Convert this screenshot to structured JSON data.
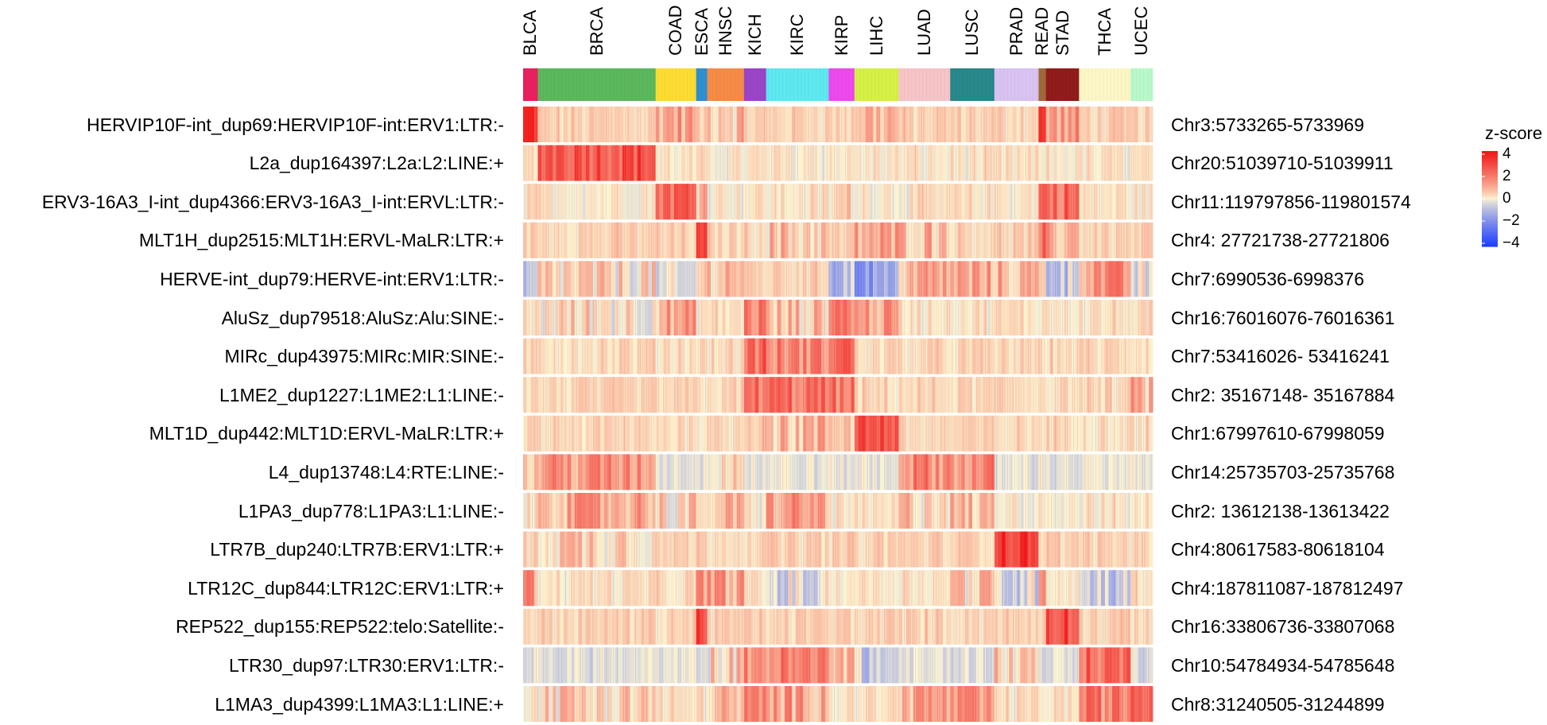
{
  "chart_data": {
    "type": "heatmap",
    "title": "",
    "xlabel": "",
    "ylabel": "",
    "cancer_types": [
      {
        "name": "BLCA",
        "color": "#e8215e",
        "n": 4
      },
      {
        "name": "BRCA",
        "color": "#5cb85c",
        "n": 32
      },
      {
        "name": "COAD",
        "color": "#fddc33",
        "n": 11
      },
      {
        "name": "ESCA",
        "color": "#2f8fd0",
        "n": 3
      },
      {
        "name": "HNSC",
        "color": "#f68b47",
        "n": 10
      },
      {
        "name": "KICH",
        "color": "#9b45c7",
        "n": 6
      },
      {
        "name": "KIRC",
        "color": "#5ee8ef",
        "n": 17
      },
      {
        "name": "KIRP",
        "color": "#ed49ec",
        "n": 7
      },
      {
        "name": "LIHC",
        "color": "#d6f046",
        "n": 12
      },
      {
        "name": "LUAD",
        "color": "#f7c4c8",
        "n": 14
      },
      {
        "name": "LUSC",
        "color": "#28888a",
        "n": 12
      },
      {
        "name": "PRAD",
        "color": "#d9c3f3",
        "n": 12
      },
      {
        "name": "READ",
        "color": "#9f6a37",
        "n": 2
      },
      {
        "name": "STAD",
        "color": "#911c1c",
        "n": 9
      },
      {
        "name": "THCA",
        "color": "#fdf6c6",
        "n": 14
      },
      {
        "name": "UCEC",
        "color": "#b9f8ca",
        "n": 6
      }
    ],
    "rows": [
      {
        "label": "HERVIP10F-int_dup69:HERVIP10F-int:ERV1:LTR:-",
        "coord": "Chr3:5733265-5733969",
        "base": 0.4,
        "means": {
          "BLCA": 3.5,
          "COAD": 1.2,
          "HNSC": 0.8,
          "LIHC": 0.9,
          "READ": 3.0,
          "STAD": 1.2
        }
      },
      {
        "label": "L2a_dup164397:L2a:L2:LINE:+",
        "coord": "Chr20:51039710-51039911",
        "base": 0.1,
        "means": {
          "BRCA": 2.8
        }
      },
      {
        "label": "ERV3-16A3_I-int_dup4366:ERV3-16A3_I-int:ERVL:LTR:-",
        "coord": "Chr11:119797856-119801574",
        "base": 0.15,
        "means": {
          "COAD": 2.4,
          "ESCA": 1.2,
          "READ": 2.4,
          "STAD": 2.2,
          "KIRP": 0.3
        }
      },
      {
        "label": "MLT1H_dup2515:MLT1H:ERVL-MaLR:LTR:+",
        "coord": "Chr4: 27721738-27721806",
        "base": 0.4,
        "means": {
          "ESCA": 2.6,
          "LIHC": 1.0,
          "LUAD": 0.9,
          "READ": 1.8,
          "STAD": 0.9,
          "KIRC": 0.6
        }
      },
      {
        "label": "HERVE-int_dup79:HERVE-int:ERV1:LTR:-",
        "coord": "Chr7:6990536-6998376",
        "base": 0.4,
        "means": {
          "BLCA": -1.0,
          "BRCA": 0.3,
          "COAD": -0.6,
          "HNSC": 0.9,
          "KIRP": -0.8,
          "LIHC": -1.6,
          "LUAD": 1.0,
          "LUSC": 1.0,
          "PRAD": 0.8,
          "STAD": -0.6,
          "THCA": 1.4,
          "UCEC": -0.3
        }
      },
      {
        "label": "AluSz_dup79518:AluSz:Alu:SINE:-",
        "coord": "Chr16:76016076-76016361",
        "base": 0.2,
        "means": {
          "COAD": 1.0,
          "KICH": 1.8,
          "KIRC": 0.6,
          "KIRP": 2.0,
          "LIHC": 1.2,
          "BRCA": 0.3
        }
      },
      {
        "label": "MIRc_dup43975:MIRc:MIR:SINE:-",
        "coord": "Chr7:53416026- 53416241",
        "base": 0.3,
        "means": {
          "KICH": 2.2,
          "KIRC": 1.6,
          "KIRP": 2.4
        }
      },
      {
        "label": "L1ME2_dup1227:L1ME2:L1:LINE:-",
        "coord": "Chr2: 35167148- 35167884",
        "base": 0.3,
        "means": {
          "KICH": 2.0,
          "KIRC": 2.0,
          "KIRP": 1.8,
          "UCEC": 0.8
        }
      },
      {
        "label": "MLT1D_dup442:MLT1D:ERVL-MaLR:LTR:+",
        "coord": "Chr1:67997610-67998059",
        "base": 0.3,
        "means": {
          "LIHC": 2.8,
          "KICH": 1.0,
          "KIRC": 0.8,
          "KIRP": 0.8
        }
      },
      {
        "label": "L4_dup13748:L4:RTE:LINE:-",
        "coord": "Chr14:25735703-25735768",
        "base": -0.2,
        "means": {
          "BRCA": 1.4,
          "LUAD": 1.6,
          "LUSC": 1.5,
          "BLCA": 0.5,
          "HNSC": 0.6
        }
      },
      {
        "label": "L1PA3_dup778:L1PA3:L1:LINE:-",
        "coord": "Chr2: 13612138-13613422",
        "base": 0.1,
        "means": {
          "BRCA": 1.1,
          "KIRC": 1.2,
          "HNSC": 0.7,
          "LUAD": 0.6,
          "LUSC": 0.6,
          "COAD": 0.4
        }
      },
      {
        "label": "LTR7B_dup240:LTR7B:ERV1:LTR:+",
        "coord": "Chr4:80617583-80618104",
        "base": 0.4,
        "means": {
          "PRAD": 3.3,
          "BRCA": 0.6
        }
      },
      {
        "label": "LTR12C_dup844:LTR12C:ERV1:LTR:+",
        "coord": "Chr4:187811087-187812497",
        "base": 0.2,
        "means": {
          "BLCA": 1.4,
          "HNSC": 1.2,
          "ESCA": 1.4,
          "READ": 2.2,
          "LUSC": 0.6,
          "KIRC": -0.4,
          "PRAD": -0.4,
          "THCA": -0.5
        }
      },
      {
        "label": "REP522_dup155:REP522:telo:Satellite:-",
        "coord": "Chr16:33806736-33807068",
        "base": 0.4,
        "means": {
          "ESCA": 3.2,
          "STAD": 3.0
        }
      },
      {
        "label": "LTR30_dup97:LTR30:ERV1:LTR:-",
        "coord": "Chr10:54784934-54785648",
        "base": -0.3,
        "means": {
          "KICH": 1.6,
          "KIRC": 1.6,
          "KIRP": 1.2,
          "THCA": 2.2,
          "HNSC": 0.4,
          "LIHC": -0.6,
          "PRAD": 0.5
        }
      },
      {
        "label": "L1MA3_dup4399:L1MA3:L1:LINE:+",
        "coord": "Chr8:31240505-31244899",
        "base": 0.2,
        "means": {
          "KICH": 1.4,
          "KIRC": 1.2,
          "LUAD": 1.2,
          "LUSC": 1.2,
          "THCA": 1.8,
          "UCEC": 2.6,
          "BRCA": 0.5,
          "HNSC": 0.7
        }
      }
    ],
    "legend": {
      "title": "z-score",
      "ticks": [
        "4",
        "2",
        "0",
        "−2",
        "−4"
      ],
      "range": [
        -4,
        4
      ],
      "colors": {
        "low": "#2040ff",
        "mid": "#fcf5d2",
        "high": "#f01818"
      }
    }
  }
}
